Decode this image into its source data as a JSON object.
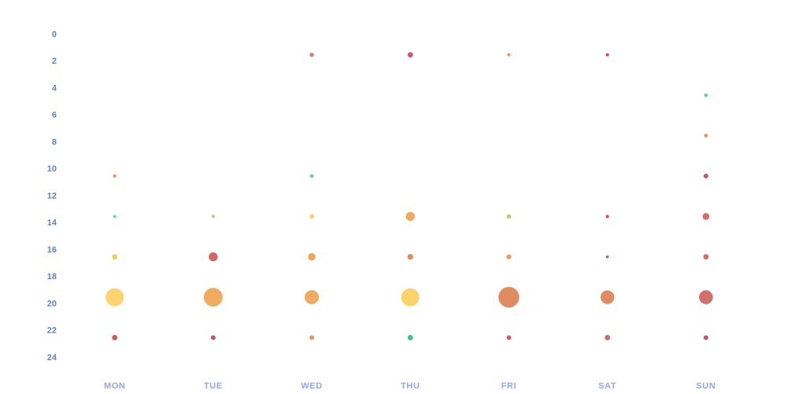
{
  "chart": {
    "background": "#ffffff",
    "axis": {
      "y_tick_color": "#667fbe",
      "x_label_color": "#94a6e8"
    }
  },
  "chart_data": {
    "type": "scatter",
    "subtype": "punch-card-bubble",
    "title": "",
    "xlabel": "",
    "ylabel": "",
    "x_categories": [
      "MON",
      "TUE",
      "WED",
      "THU",
      "FRI",
      "SAT",
      "SUN"
    ],
    "y_ticks": [
      0,
      2,
      4,
      6,
      8,
      10,
      12,
      14,
      16,
      18,
      20,
      22,
      24
    ],
    "y_axis_range": [
      0,
      24
    ],
    "y_axis_meaning": "hour of day, 3-hour bins centered at 1.5/4.5/7.5/10.5/13.5/16.5/19.5/22.5",
    "grid": false,
    "legend": "none",
    "size_encoding": "bubble radius in px as rendered",
    "points": [
      {
        "day": "WED",
        "hour": 1.5,
        "r": 2.7,
        "color": "#dc7c7c"
      },
      {
        "day": "THU",
        "hour": 1.5,
        "r": 3.4,
        "color": "#cb5a6e"
      },
      {
        "day": "FRI",
        "hour": 1.5,
        "r": 2.1,
        "color": "#e9945d"
      },
      {
        "day": "SAT",
        "hour": 1.5,
        "r": 2.1,
        "color": "#c74b6b"
      },
      {
        "day": "SUN",
        "hour": 4.5,
        "r": 2.3,
        "color": "#5dd68e"
      },
      {
        "day": "SUN",
        "hour": 7.5,
        "r": 2.3,
        "color": "#e9945d"
      },
      {
        "day": "MON",
        "hour": 10.5,
        "r": 2.1,
        "color": "#e9945d"
      },
      {
        "day": "WED",
        "hour": 10.5,
        "r": 2.3,
        "color": "#5dd68e"
      },
      {
        "day": "SUN",
        "hour": 10.5,
        "r": 3.0,
        "color": "#c85070"
      },
      {
        "day": "MON",
        "hour": 13.5,
        "r": 1.8,
        "color": "#5dd68e"
      },
      {
        "day": "TUE",
        "hour": 13.5,
        "r": 2.1,
        "color": "#aed168"
      },
      {
        "day": "WED",
        "hour": 13.5,
        "r": 2.8,
        "color": "#f8ce5d"
      },
      {
        "day": "THU",
        "hour": 13.5,
        "r": 5.7,
        "color": "#f0a95e"
      },
      {
        "day": "FRI",
        "hour": 13.5,
        "r": 2.8,
        "color": "#b3d16b"
      },
      {
        "day": "SAT",
        "hour": 13.5,
        "r": 2.1,
        "color": "#c9506e"
      },
      {
        "day": "SUN",
        "hour": 13.5,
        "r": 4.3,
        "color": "#d96b6b"
      },
      {
        "day": "MON",
        "hour": 16.5,
        "r": 3.4,
        "color": "#e9d05f"
      },
      {
        "day": "TUE",
        "hour": 16.5,
        "r": 5.7,
        "color": "#d76666"
      },
      {
        "day": "WED",
        "hour": 16.5,
        "r": 4.7,
        "color": "#efa55a"
      },
      {
        "day": "THU",
        "hour": 16.5,
        "r": 3.7,
        "color": "#e58a63"
      },
      {
        "day": "FRI",
        "hour": 16.5,
        "r": 3.1,
        "color": "#e89a62"
      },
      {
        "day": "SAT",
        "hour": 16.5,
        "r": 1.8,
        "color": "#c4506c"
      },
      {
        "day": "SUN",
        "hour": 16.5,
        "r": 3.4,
        "color": "#d66a6a"
      },
      {
        "day": "MON",
        "hour": 19.5,
        "r": 11.5,
        "color": "#fcd36e"
      },
      {
        "day": "TUE",
        "hour": 19.5,
        "r": 12.0,
        "color": "#efac60"
      },
      {
        "day": "WED",
        "hour": 19.5,
        "r": 9.0,
        "color": "#efac60"
      },
      {
        "day": "THU",
        "hour": 19.5,
        "r": 11.5,
        "color": "#fbd36e"
      },
      {
        "day": "FRI",
        "hour": 19.5,
        "r": 13.2,
        "color": "#e08b62"
      },
      {
        "day": "SAT",
        "hour": 19.5,
        "r": 8.7,
        "color": "#e08b62"
      },
      {
        "day": "SUN",
        "hour": 19.5,
        "r": 8.8,
        "color": "#d26f6f"
      },
      {
        "day": "MON",
        "hour": 22.5,
        "r": 3.4,
        "color": "#d05a5a"
      },
      {
        "day": "TUE",
        "hour": 22.5,
        "r": 3.0,
        "color": "#c9506e"
      },
      {
        "day": "WED",
        "hour": 22.5,
        "r": 3.0,
        "color": "#e9945d"
      },
      {
        "day": "THU",
        "hour": 22.5,
        "r": 3.4,
        "color": "#3ec28c"
      },
      {
        "day": "FRI",
        "hour": 22.5,
        "r": 3.0,
        "color": "#ce5a67"
      },
      {
        "day": "SAT",
        "hour": 22.5,
        "r": 3.4,
        "color": "#d66a6a"
      },
      {
        "day": "SUN",
        "hour": 22.5,
        "r": 3.0,
        "color": "#c9506e"
      }
    ]
  }
}
